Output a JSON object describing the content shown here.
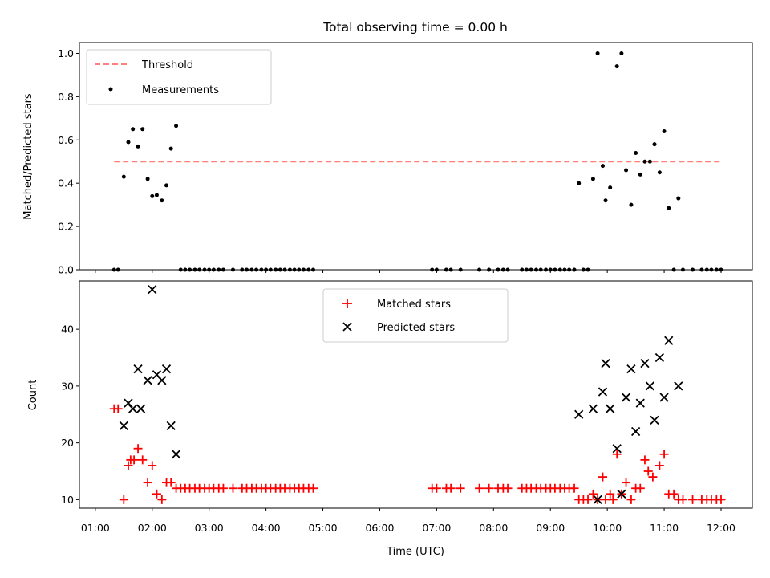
{
  "chart_data": [
    {
      "type": "scatter",
      "title": "Total observing time = 0.00 h",
      "xlabel": "",
      "ylabel": "Matched/Predicted stars",
      "xlim": [
        0.72,
        12.55
      ],
      "ylim": [
        0.0,
        1.05
      ],
      "yticks": [
        0.0,
        0.2,
        0.4,
        0.6,
        0.8,
        1.0
      ],
      "ytick_labels": [
        "0.0",
        "0.2",
        "0.4",
        "0.6",
        "0.8",
        "1.0"
      ],
      "grid": false,
      "legend_position": "top-left",
      "threshold": {
        "name": "Threshold",
        "y": 0.5,
        "x": [
          1.33,
          12.0
        ],
        "color": "#ff7f7f"
      },
      "series": [
        {
          "name": "Measurements",
          "color": "#000000",
          "points": [
            [
              1.33,
              0
            ],
            [
              1.4,
              0
            ],
            [
              1.5,
              0.43
            ],
            [
              1.58,
              0.59
            ],
            [
              1.66,
              0.65
            ],
            [
              1.75,
              0.57
            ],
            [
              1.83,
              0.65
            ],
            [
              1.92,
              0.42
            ],
            [
              2.0,
              0.34
            ],
            [
              2.08,
              0.345
            ],
            [
              2.17,
              0.32
            ],
            [
              2.25,
              0.39
            ],
            [
              2.33,
              0.56
            ],
            [
              2.42,
              0.665
            ],
            [
              2.5,
              0
            ],
            [
              2.58,
              0
            ],
            [
              2.66,
              0
            ],
            [
              2.75,
              0
            ],
            [
              2.83,
              0
            ],
            [
              2.92,
              0
            ],
            [
              3.0,
              0
            ],
            [
              3.08,
              0
            ],
            [
              3.17,
              0
            ],
            [
              3.25,
              0
            ],
            [
              3.42,
              0
            ],
            [
              3.58,
              0
            ],
            [
              3.66,
              0
            ],
            [
              3.75,
              0
            ],
            [
              3.83,
              0
            ],
            [
              3.92,
              0
            ],
            [
              4.0,
              0
            ],
            [
              4.08,
              0
            ],
            [
              4.17,
              0
            ],
            [
              4.25,
              0
            ],
            [
              4.33,
              0
            ],
            [
              4.42,
              0
            ],
            [
              4.5,
              0
            ],
            [
              4.58,
              0
            ],
            [
              4.66,
              0
            ],
            [
              4.75,
              0
            ],
            [
              4.83,
              0
            ],
            [
              6.92,
              0
            ],
            [
              7.0,
              0
            ],
            [
              7.17,
              0
            ],
            [
              7.25,
              0
            ],
            [
              7.42,
              0
            ],
            [
              7.75,
              0
            ],
            [
              7.92,
              0
            ],
            [
              8.08,
              0
            ],
            [
              8.17,
              0
            ],
            [
              8.25,
              0
            ],
            [
              8.5,
              0
            ],
            [
              8.58,
              0
            ],
            [
              8.66,
              0
            ],
            [
              8.75,
              0
            ],
            [
              8.83,
              0
            ],
            [
              8.92,
              0
            ],
            [
              9.0,
              0
            ],
            [
              9.08,
              0
            ],
            [
              9.17,
              0
            ],
            [
              9.25,
              0
            ],
            [
              9.33,
              0
            ],
            [
              9.42,
              0
            ],
            [
              9.58,
              0
            ],
            [
              9.66,
              0
            ],
            [
              9.5,
              0.4
            ],
            [
              9.75,
              0.42
            ],
            [
              9.83,
              1.0
            ],
            [
              9.92,
              0.48
            ],
            [
              9.97,
              0.32
            ],
            [
              10.05,
              0.38
            ],
            [
              10.17,
              0.94
            ],
            [
              10.25,
              1.0
            ],
            [
              10.33,
              0.46
            ],
            [
              10.42,
              0.3
            ],
            [
              10.5,
              0.54
            ],
            [
              10.58,
              0.44
            ],
            [
              10.66,
              0.5
            ],
            [
              10.75,
              0.5
            ],
            [
              10.83,
              0.58
            ],
            [
              10.92,
              0.45
            ],
            [
              11.0,
              0.64
            ],
            [
              11.08,
              0.285
            ],
            [
              11.25,
              0.33
            ],
            [
              11.17,
              0
            ],
            [
              11.33,
              0
            ],
            [
              11.5,
              0
            ],
            [
              11.66,
              0
            ],
            [
              11.75,
              0
            ],
            [
              11.83,
              0
            ],
            [
              11.92,
              0
            ],
            [
              12.0,
              0
            ]
          ]
        }
      ]
    },
    {
      "type": "scatter",
      "title": "",
      "xlabel": "Time (UTC)",
      "ylabel": "Count",
      "xlim": [
        0.72,
        12.55
      ],
      "ylim": [
        8.5,
        48.5
      ],
      "yticks": [
        10,
        20,
        30,
        40
      ],
      "ytick_labels": [
        "10",
        "20",
        "30",
        "40"
      ],
      "xticks": [
        1,
        2,
        3,
        4,
        5,
        6,
        7,
        8,
        9,
        10,
        11,
        12
      ],
      "xtick_labels": [
        "01:00",
        "02:00",
        "03:00",
        "04:00",
        "05:00",
        "06:00",
        "07:00",
        "08:00",
        "09:00",
        "10:00",
        "11:00",
        "12:00"
      ],
      "grid": false,
      "legend_position": "top-center",
      "series": [
        {
          "name": "Matched stars",
          "marker": "+",
          "color": "#ff0000",
          "points": [
            [
              1.33,
              26
            ],
            [
              1.4,
              26
            ],
            [
              1.5,
              10
            ],
            [
              1.58,
              16
            ],
            [
              1.62,
              17
            ],
            [
              1.68,
              17
            ],
            [
              1.75,
              19
            ],
            [
              1.83,
              17
            ],
            [
              1.92,
              13
            ],
            [
              2.0,
              16
            ],
            [
              2.08,
              11
            ],
            [
              2.17,
              10
            ],
            [
              2.25,
              13
            ],
            [
              2.33,
              13
            ],
            [
              2.42,
              12
            ],
            [
              2.5,
              12
            ],
            [
              2.58,
              12
            ],
            [
              2.66,
              12
            ],
            [
              2.75,
              12
            ],
            [
              2.83,
              12
            ],
            [
              2.92,
              12
            ],
            [
              3.0,
              12
            ],
            [
              3.08,
              12
            ],
            [
              3.17,
              12
            ],
            [
              3.25,
              12
            ],
            [
              3.42,
              12
            ],
            [
              3.58,
              12
            ],
            [
              3.66,
              12
            ],
            [
              3.75,
              12
            ],
            [
              3.83,
              12
            ],
            [
              3.92,
              12
            ],
            [
              4.0,
              12
            ],
            [
              4.08,
              12
            ],
            [
              4.17,
              12
            ],
            [
              4.25,
              12
            ],
            [
              4.33,
              12
            ],
            [
              4.42,
              12
            ],
            [
              4.5,
              12
            ],
            [
              4.58,
              12
            ],
            [
              4.66,
              12
            ],
            [
              4.75,
              12
            ],
            [
              4.83,
              12
            ],
            [
              6.92,
              12
            ],
            [
              7.0,
              12
            ],
            [
              7.17,
              12
            ],
            [
              7.25,
              12
            ],
            [
              7.42,
              12
            ],
            [
              7.75,
              12
            ],
            [
              7.92,
              12
            ],
            [
              8.08,
              12
            ],
            [
              8.17,
              12
            ],
            [
              8.25,
              12
            ],
            [
              8.5,
              12
            ],
            [
              8.58,
              12
            ],
            [
              8.66,
              12
            ],
            [
              8.75,
              12
            ],
            [
              8.83,
              12
            ],
            [
              8.92,
              12
            ],
            [
              9.0,
              12
            ],
            [
              9.08,
              12
            ],
            [
              9.17,
              12
            ],
            [
              9.25,
              12
            ],
            [
              9.33,
              12
            ],
            [
              9.42,
              12
            ],
            [
              9.5,
              10
            ],
            [
              9.58,
              10
            ],
            [
              9.66,
              10
            ],
            [
              9.75,
              11
            ],
            [
              9.83,
              10
            ],
            [
              9.92,
              14
            ],
            [
              9.97,
              10
            ],
            [
              10.05,
              11
            ],
            [
              10.1,
              10
            ],
            [
              10.17,
              18
            ],
            [
              10.25,
              11
            ],
            [
              10.33,
              13
            ],
            [
              10.42,
              10
            ],
            [
              10.5,
              12
            ],
            [
              10.58,
              12
            ],
            [
              10.66,
              17
            ],
            [
              10.72,
              15
            ],
            [
              10.8,
              14
            ],
            [
              10.92,
              16
            ],
            [
              11.0,
              18
            ],
            [
              11.08,
              11
            ],
            [
              11.17,
              11
            ],
            [
              11.25,
              10
            ],
            [
              11.33,
              10
            ],
            [
              11.5,
              10
            ],
            [
              11.66,
              10
            ],
            [
              11.75,
              10
            ],
            [
              11.83,
              10
            ],
            [
              11.92,
              10
            ],
            [
              12.0,
              10
            ]
          ]
        },
        {
          "name": "Predicted stars",
          "marker": "x",
          "color": "#000000",
          "points": [
            [
              1.5,
              23
            ],
            [
              1.58,
              27
            ],
            [
              1.66,
              26
            ],
            [
              1.75,
              33
            ],
            [
              1.8,
              26
            ],
            [
              1.92,
              31
            ],
            [
              2.0,
              47
            ],
            [
              2.08,
              32
            ],
            [
              2.17,
              31
            ],
            [
              2.25,
              33
            ],
            [
              2.33,
              23
            ],
            [
              2.42,
              18
            ],
            [
              9.5,
              25
            ],
            [
              9.75,
              26
            ],
            [
              9.83,
              10
            ],
            [
              9.92,
              29
            ],
            [
              9.97,
              34
            ],
            [
              10.05,
              26
            ],
            [
              10.17,
              19
            ],
            [
              10.25,
              11
            ],
            [
              10.33,
              28
            ],
            [
              10.42,
              33
            ],
            [
              10.5,
              22
            ],
            [
              10.58,
              27
            ],
            [
              10.66,
              34
            ],
            [
              10.75,
              30
            ],
            [
              10.83,
              24
            ],
            [
              10.92,
              35
            ],
            [
              11.0,
              28
            ],
            [
              11.08,
              38
            ],
            [
              11.25,
              30
            ]
          ]
        }
      ]
    }
  ]
}
